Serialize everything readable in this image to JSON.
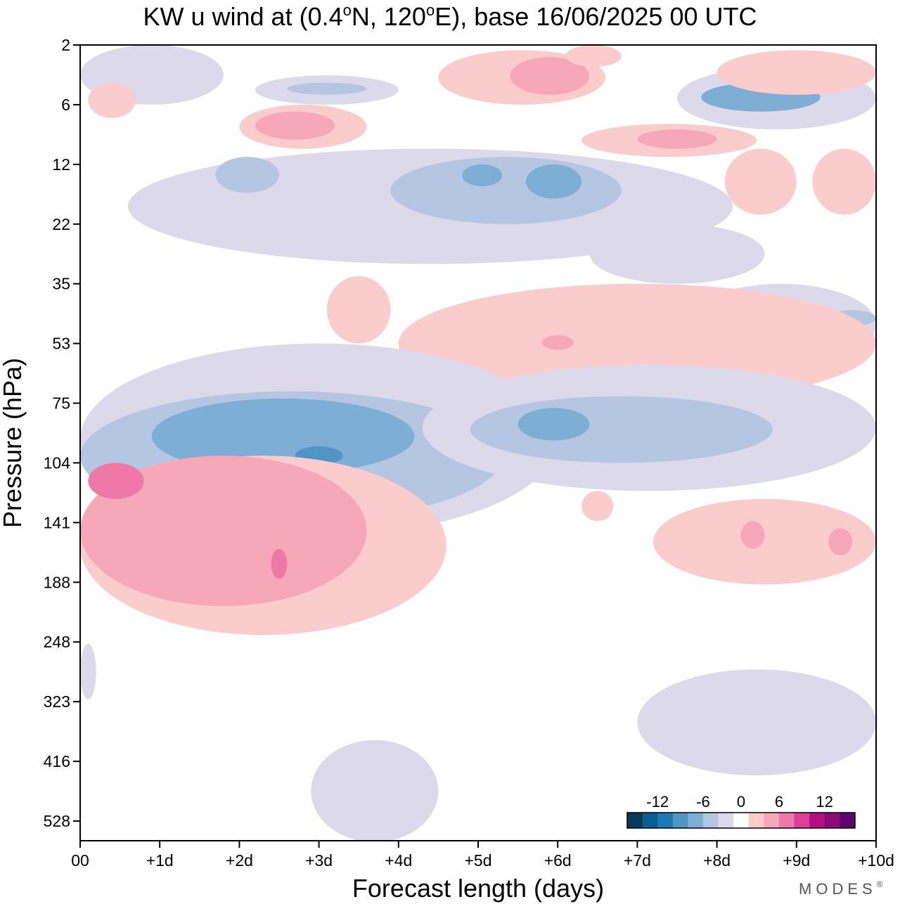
{
  "chart_data": {
    "type": "heatmap",
    "title_main": "KW u wind at (0.4",
    "title_deg1": "o",
    "title_mid": "N, 120",
    "title_deg2": "o",
    "title_end": "E),  base 16/06/2025  00 UTC",
    "xlabel": "Forecast length (days)",
    "ylabel": "Pressure (hPa)",
    "x_ticks": [
      "00",
      "+1d",
      "+2d",
      "+3d",
      "+4d",
      "+5d",
      "+6d",
      "+7d",
      "+8d",
      "+9d",
      "+10d"
    ],
    "y_ticks": [
      "2",
      "6",
      "12",
      "22",
      "35",
      "53",
      "75",
      "104",
      "141",
      "188",
      "248",
      "323",
      "416",
      "528"
    ],
    "xlim": [
      0,
      10
    ],
    "colorbar": {
      "tick_labels": [
        "-12",
        "-6",
        "0",
        "6",
        "12"
      ],
      "colors": [
        "#08385a",
        "#0a5f92",
        "#1b79b5",
        "#4f95c6",
        "#7faed5",
        "#b4c6e2",
        "#dcdaea",
        "#ffffff",
        "#fbcccc",
        "#f6a8b8",
        "#ef78a8",
        "#de3f95",
        "#b5107f",
        "#8d0b78",
        "#5c056a"
      ]
    },
    "regions": [
      {
        "level": -2,
        "x0": 0.0,
        "x1": 1.8,
        "y0": 2,
        "y1": 6
      },
      {
        "level": -2,
        "x0": 2.2,
        "x1": 4.0,
        "y0": 3.5,
        "y1": 6
      },
      {
        "level": -4,
        "x0": 2.6,
        "x1": 3.6,
        "y0": 4,
        "y1": 5
      },
      {
        "level": 2,
        "x0": 0.1,
        "x1": 0.7,
        "y0": 4,
        "y1": 7
      },
      {
        "level": 2,
        "x0": 2.0,
        "x1": 3.6,
        "y0": 6,
        "y1": 10
      },
      {
        "level": 4,
        "x0": 2.2,
        "x1": 3.2,
        "y0": 6.5,
        "y1": 9
      },
      {
        "level": 2,
        "x0": 4.5,
        "x1": 6.6,
        "y0": 2.2,
        "y1": 6
      },
      {
        "level": 4,
        "x0": 5.4,
        "x1": 6.4,
        "y0": 2.5,
        "y1": 5
      },
      {
        "level": 2,
        "x0": 6.1,
        "x1": 6.8,
        "y0": 2,
        "y1": 3
      },
      {
        "level": -2,
        "x0": 7.5,
        "x1": 10.0,
        "y0": 3,
        "y1": 8
      },
      {
        "level": -6,
        "x0": 7.8,
        "x1": 9.3,
        "y0": 4,
        "y1": 6.5
      },
      {
        "level": 2,
        "x0": 8.0,
        "x1": 10.0,
        "y0": 2.2,
        "y1": 5
      },
      {
        "level": 2,
        "x0": 6.3,
        "x1": 8.5,
        "y0": 7.5,
        "y1": 11
      },
      {
        "level": 4,
        "x0": 7.0,
        "x1": 8.0,
        "y0": 8,
        "y1": 10
      },
      {
        "level": 2,
        "x0": 8.1,
        "x1": 9.0,
        "y0": 10,
        "y1": 20
      },
      {
        "level": 2,
        "x0": 9.2,
        "x1": 10.0,
        "y0": 10,
        "y1": 20
      },
      {
        "level": -2,
        "x0": 0.6,
        "x1": 8.2,
        "y0": 10,
        "y1": 30
      },
      {
        "level": -4,
        "x0": 1.7,
        "x1": 2.5,
        "y0": 11,
        "y1": 16
      },
      {
        "level": -4,
        "x0": 3.9,
        "x1": 6.8,
        "y0": 11,
        "y1": 22
      },
      {
        "level": -6,
        "x0": 4.8,
        "x1": 5.3,
        "y0": 12,
        "y1": 15
      },
      {
        "level": -6,
        "x0": 5.6,
        "x1": 6.3,
        "y0": 12,
        "y1": 17
      },
      {
        "level": -2,
        "x0": 6.4,
        "x1": 8.6,
        "y0": 22,
        "y1": 35
      },
      {
        "level": -2,
        "x0": 7.6,
        "x1": 10.0,
        "y0": 35,
        "y1": 60
      },
      {
        "level": -4,
        "x0": 9.4,
        "x1": 10.0,
        "y0": 42,
        "y1": 47
      },
      {
        "level": 2,
        "x0": 3.1,
        "x1": 3.9,
        "y0": 33,
        "y1": 53
      },
      {
        "level": 2,
        "x0": 4.0,
        "x1": 10.0,
        "y0": 35,
        "y1": 75
      },
      {
        "level": 4,
        "x0": 5.8,
        "x1": 6.2,
        "y0": 50,
        "y1": 55
      },
      {
        "level": 4,
        "x0": 7.7,
        "x1": 8.3,
        "y0": 68,
        "y1": 73
      },
      {
        "level": -2,
        "x0": 0.0,
        "x1": 6.0,
        "y0": 53,
        "y1": 150
      },
      {
        "level": -4,
        "x0": 0.0,
        "x1": 5.3,
        "y0": 70,
        "y1": 140
      },
      {
        "level": -6,
        "x0": 0.9,
        "x1": 4.2,
        "y0": 73,
        "y1": 110
      },
      {
        "level": -8,
        "x0": 2.7,
        "x1": 3.3,
        "y0": 95,
        "y1": 105
      },
      {
        "level": -2,
        "x0": 4.3,
        "x1": 10.0,
        "y0": 60,
        "y1": 120
      },
      {
        "level": -4,
        "x0": 4.9,
        "x1": 8.7,
        "y0": 72,
        "y1": 104
      },
      {
        "level": -6,
        "x0": 5.5,
        "x1": 6.4,
        "y0": 77,
        "y1": 92
      },
      {
        "level": 2,
        "x0": 0.0,
        "x1": 4.6,
        "y0": 100,
        "y1": 240
      },
      {
        "level": 4,
        "x0": 0.0,
        "x1": 3.6,
        "y0": 100,
        "y1": 210
      },
      {
        "level": 6,
        "x0": 0.1,
        "x1": 0.8,
        "y0": 104,
        "y1": 125
      },
      {
        "level": 6,
        "x0": 2.4,
        "x1": 2.6,
        "y0": 160,
        "y1": 185
      },
      {
        "level": 2,
        "x0": 6.3,
        "x1": 6.7,
        "y0": 120,
        "y1": 140
      },
      {
        "level": 2,
        "x0": 7.2,
        "x1": 10.0,
        "y0": 125,
        "y1": 190
      },
      {
        "level": 4,
        "x0": 8.3,
        "x1": 8.6,
        "y0": 140,
        "y1": 160
      },
      {
        "level": 4,
        "x0": 9.4,
        "x1": 9.7,
        "y0": 145,
        "y1": 165
      },
      {
        "level": -2,
        "x0": 0.0,
        "x1": 0.2,
        "y0": 250,
        "y1": 320
      },
      {
        "level": -2,
        "x0": 7.0,
        "x1": 10.0,
        "y0": 280,
        "y1": 440
      },
      {
        "level": -2,
        "x0": 2.9,
        "x1": 4.5,
        "y0": 380,
        "y1": 560
      }
    ]
  },
  "watermark": "MODES",
  "watermark_mark": "®"
}
